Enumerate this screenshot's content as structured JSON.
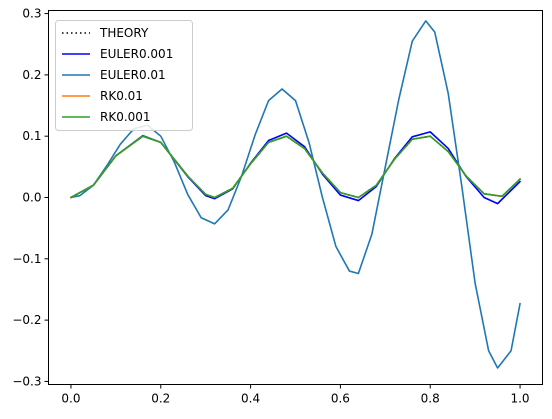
{
  "chart_data": {
    "type": "line",
    "title": "",
    "xlabel": "",
    "ylabel": "",
    "xlim": [
      -0.05,
      1.05
    ],
    "ylim": [
      -0.305,
      0.305
    ],
    "x_ticks": [
      0.0,
      0.2,
      0.4,
      0.6,
      0.8,
      1.0
    ],
    "x_tick_labels": [
      "0.0",
      "0.2",
      "0.4",
      "0.6",
      "0.8",
      "1.0"
    ],
    "y_ticks": [
      -0.3,
      -0.2,
      -0.1,
      0.0,
      0.1,
      0.2,
      0.3
    ],
    "y_tick_labels": [
      "−0.3",
      "−0.2",
      "−0.1",
      "0.0",
      "0.1",
      "0.2",
      "0.3"
    ],
    "grid": false,
    "legend_position": "top-left",
    "series": [
      {
        "name": "THEORY",
        "color": "#000000",
        "dash": "dotted",
        "x": [
          0.0,
          0.05,
          0.1,
          0.16,
          0.2,
          0.26,
          0.3,
          0.32,
          0.36,
          0.4,
          0.44,
          0.48,
          0.52,
          0.56,
          0.6,
          0.64,
          0.68,
          0.72,
          0.76,
          0.8,
          0.84,
          0.88,
          0.92,
          0.96,
          1.0
        ],
        "y": [
          0.0,
          0.02,
          0.068,
          0.1,
          0.09,
          0.035,
          0.005,
          0.0,
          0.015,
          0.055,
          0.09,
          0.1,
          0.08,
          0.04,
          0.008,
          0.0,
          0.02,
          0.062,
          0.095,
          0.1,
          0.075,
          0.035,
          0.006,
          0.002,
          0.03
        ]
      },
      {
        "name": "EULER0.001",
        "color": "#0000ff",
        "dash": "solid",
        "x": [
          0.0,
          0.05,
          0.1,
          0.16,
          0.2,
          0.26,
          0.3,
          0.32,
          0.36,
          0.4,
          0.44,
          0.48,
          0.52,
          0.56,
          0.6,
          0.64,
          0.68,
          0.72,
          0.76,
          0.8,
          0.84,
          0.88,
          0.92,
          0.95,
          1.0
        ],
        "y": [
          0.0,
          0.02,
          0.068,
          0.101,
          0.09,
          0.034,
          0.003,
          -0.002,
          0.014,
          0.056,
          0.093,
          0.105,
          0.083,
          0.038,
          0.004,
          -0.005,
          0.018,
          0.063,
          0.099,
          0.107,
          0.08,
          0.034,
          0.0,
          -0.01,
          0.026
        ]
      },
      {
        "name": "EULER0.01",
        "color": "#1f77b4",
        "dash": "solid",
        "x": [
          0.0,
          0.02,
          0.05,
          0.08,
          0.11,
          0.14,
          0.17,
          0.2,
          0.23,
          0.26,
          0.29,
          0.32,
          0.35,
          0.38,
          0.41,
          0.44,
          0.47,
          0.5,
          0.53,
          0.56,
          0.59,
          0.62,
          0.64,
          0.67,
          0.7,
          0.73,
          0.76,
          0.79,
          0.81,
          0.84,
          0.87,
          0.9,
          0.93,
          0.95,
          0.98,
          1.0
        ],
        "y": [
          0.0,
          0.003,
          0.02,
          0.052,
          0.087,
          0.112,
          0.118,
          0.1,
          0.058,
          0.005,
          -0.033,
          -0.043,
          -0.02,
          0.035,
          0.102,
          0.158,
          0.177,
          0.158,
          0.09,
          0.0,
          -0.08,
          -0.12,
          -0.124,
          -0.06,
          0.05,
          0.16,
          0.255,
          0.288,
          0.27,
          0.17,
          0.02,
          -0.14,
          -0.25,
          -0.278,
          -0.25,
          -0.173
        ]
      },
      {
        "name": "RK0.01",
        "color": "#ff7f0e",
        "dash": "solid",
        "x": [
          0.0,
          0.05,
          0.1,
          0.16,
          0.2,
          0.26,
          0.3,
          0.32,
          0.36,
          0.4,
          0.44,
          0.48,
          0.52,
          0.56,
          0.6,
          0.64,
          0.68,
          0.72,
          0.76,
          0.8,
          0.84,
          0.88,
          0.92,
          0.96,
          1.0
        ],
        "y": [
          0.0,
          0.02,
          0.068,
          0.1,
          0.09,
          0.035,
          0.005,
          0.0,
          0.015,
          0.055,
          0.09,
          0.1,
          0.08,
          0.04,
          0.008,
          0.0,
          0.02,
          0.062,
          0.095,
          0.1,
          0.075,
          0.035,
          0.006,
          0.002,
          0.03
        ]
      },
      {
        "name": "RK0.001",
        "color": "#2ca02c",
        "dash": "solid",
        "x": [
          0.0,
          0.05,
          0.1,
          0.16,
          0.2,
          0.26,
          0.3,
          0.32,
          0.36,
          0.4,
          0.44,
          0.48,
          0.52,
          0.56,
          0.6,
          0.64,
          0.68,
          0.72,
          0.76,
          0.8,
          0.84,
          0.88,
          0.92,
          0.96,
          1.0
        ],
        "y": [
          0.0,
          0.02,
          0.068,
          0.1,
          0.09,
          0.035,
          0.005,
          0.0,
          0.015,
          0.055,
          0.09,
          0.1,
          0.08,
          0.04,
          0.008,
          0.0,
          0.02,
          0.062,
          0.095,
          0.1,
          0.075,
          0.035,
          0.006,
          0.002,
          0.03
        ]
      }
    ]
  }
}
